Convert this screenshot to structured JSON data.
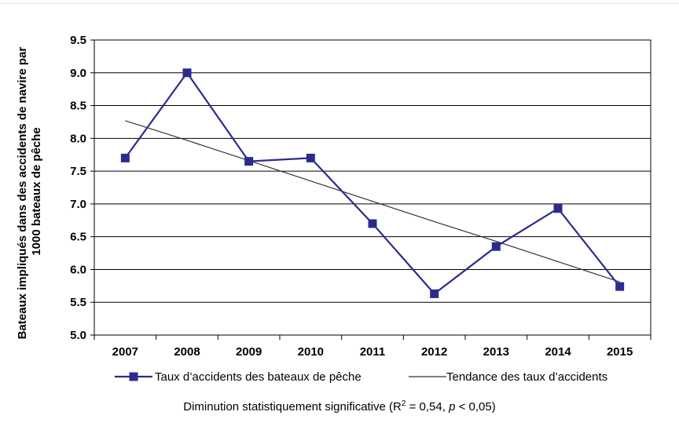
{
  "chart_data": {
    "type": "line",
    "ylabel_lines": [
      "Bateaux impliqués dans des accidents de navire par",
      "1000 bateaux de pêche"
    ],
    "xlabel": "",
    "categories": [
      "2007",
      "2008",
      "2009",
      "2010",
      "2011",
      "2012",
      "2013",
      "2014",
      "2015"
    ],
    "y_ticks": [
      "5.0",
      "5.5",
      "6.0",
      "6.5",
      "7.0",
      "7.5",
      "8.0",
      "8.5",
      "9.0",
      "9.5"
    ],
    "ylim": [
      5.0,
      9.5
    ],
    "grid": "horizontal",
    "legend_position": "bottom",
    "series": [
      {
        "name": "Taux d’accidents des bateaux de pêche",
        "values": [
          7.7,
          9.0,
          7.65,
          7.7,
          6.7,
          5.63,
          6.35,
          6.93,
          5.74
        ],
        "color": "#2b2b8f",
        "marker": "square"
      },
      {
        "name": "Tendance des taux d’accidents",
        "values": [
          8.27,
          7.97,
          7.66,
          7.35,
          7.04,
          6.73,
          6.43,
          6.12,
          5.81
        ],
        "color": "#333333",
        "marker": "none"
      }
    ]
  },
  "footnote": {
    "before": "Diminution statistiquement significative (R",
    "sup": "2",
    "middle": " = 0,54, ",
    "italic": "p",
    "after": " < 0,05)"
  }
}
